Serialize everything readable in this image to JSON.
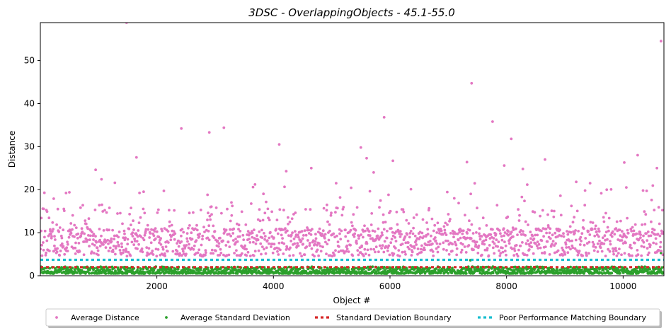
{
  "chart_data": {
    "type": "scatter",
    "title": "3DSC - OverlappingObjects - 45.1-55.0",
    "xlabel": "Object #",
    "ylabel": "Distance",
    "xlim": [
      1,
      10700
    ],
    "ylim": [
      0,
      58.8
    ],
    "xticks": [
      2000,
      4000,
      6000,
      8000,
      10000
    ],
    "yticks": [
      0,
      10,
      20,
      30,
      40,
      50
    ],
    "xtick_labels": [
      "2000",
      "4000",
      "6000",
      "8000",
      "10000"
    ],
    "ytick_labels": [
      "0",
      "10",
      "20",
      "30",
      "40",
      "50"
    ],
    "grid": false,
    "legend_position": "bottom-outside",
    "series": [
      {
        "name": "Average Distance",
        "kind": "points",
        "color": "#e377c2",
        "n_points": 1500,
        "typical_range": [
          3,
          15
        ],
        "outliers": [
          [
            1480,
            58.8
          ],
          [
            1650,
            27.5
          ],
          [
            2420,
            34.2
          ],
          [
            2900,
            33.3
          ],
          [
            3150,
            34.4
          ],
          [
            4100,
            30.5
          ],
          [
            4220,
            24.3
          ],
          [
            5500,
            29.8
          ],
          [
            5900,
            36.8
          ],
          [
            7400,
            44.7
          ],
          [
            7760,
            35.8
          ],
          [
            8080,
            31.8
          ],
          [
            10250,
            28.0
          ],
          [
            10650,
            54.5
          ],
          [
            950,
            24.6
          ],
          [
            1050,
            22.4
          ],
          [
            5600,
            27.3
          ],
          [
            5720,
            24.0
          ],
          [
            6050,
            26.7
          ],
          [
            6360,
            20.1
          ],
          [
            7320,
            26.4
          ],
          [
            7960,
            25.6
          ],
          [
            8280,
            24.8
          ],
          [
            8660,
            27.0
          ],
          [
            10020,
            26.3
          ],
          [
            10580,
            25.0
          ],
          [
            3650,
            20.6
          ],
          [
            2870,
            18.8
          ],
          [
            230,
            17.9
          ],
          [
            4650,
            25.0
          ]
        ]
      },
      {
        "name": "Average Standard Deviation",
        "kind": "points",
        "color": "#2ca02c",
        "n_points": 1500,
        "typical_range": [
          0.3,
          2.2
        ],
        "outliers": [
          [
            10650,
            5.3
          ],
          [
            7380,
            3.6
          ]
        ]
      },
      {
        "name": "Standard Deviation Boundary",
        "kind": "hline",
        "color": "#d62728",
        "y": 2.0
      },
      {
        "name": "Poor Performance Matching Boundary",
        "kind": "hline",
        "color": "#17becf",
        "y": 3.7
      }
    ]
  }
}
